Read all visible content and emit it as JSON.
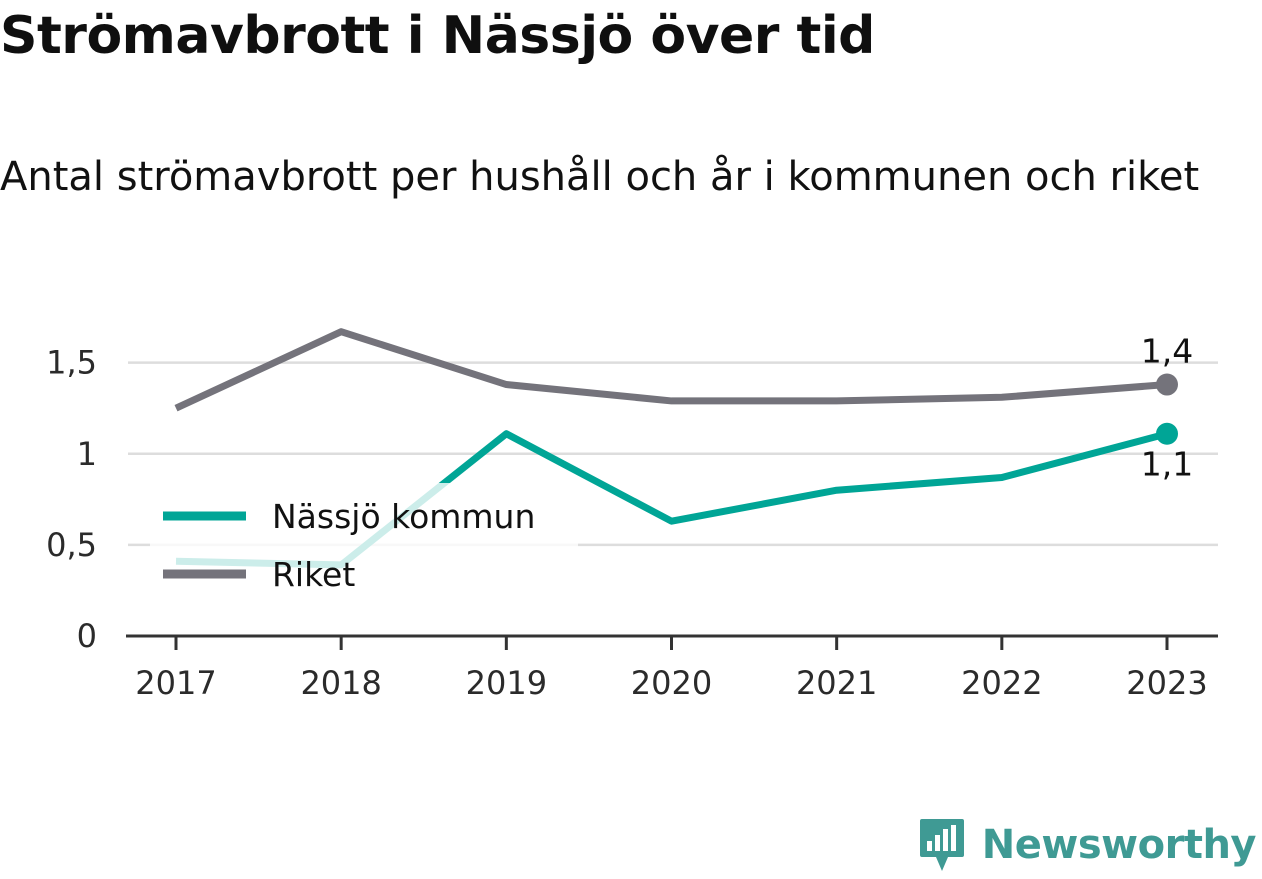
{
  "title": "Strömavbrott i Nässjö över tid",
  "subtitle": "Antal strömavbrott per hushåll och år i kommunen och riket",
  "brand": {
    "name": "Newsworthy",
    "icon": "newsworthy-logo-icon",
    "color": "#3f9a94"
  },
  "chart_data": {
    "type": "line",
    "x": [
      "2017",
      "2018",
      "2019",
      "2020",
      "2021",
      "2022",
      "2023"
    ],
    "y_ticks": [
      {
        "value": 0,
        "label": "0"
      },
      {
        "value": 0.5,
        "label": "0,5"
      },
      {
        "value": 1,
        "label": "1"
      },
      {
        "value": 1.5,
        "label": "1,5"
      }
    ],
    "ylim": [
      0,
      1.8
    ],
    "grid": true,
    "legend_placement": "left",
    "series": [
      {
        "name": "Nässjö kommun",
        "color": "#00a596",
        "values": [
          0.41,
          0.39,
          1.11,
          0.63,
          0.8,
          0.87,
          1.11
        ],
        "end_label": "1,1"
      },
      {
        "name": "Riket",
        "color": "#74737b",
        "values": [
          1.25,
          1.67,
          1.38,
          1.29,
          1.29,
          1.31,
          1.38
        ],
        "end_label": "1,4"
      }
    ]
  }
}
